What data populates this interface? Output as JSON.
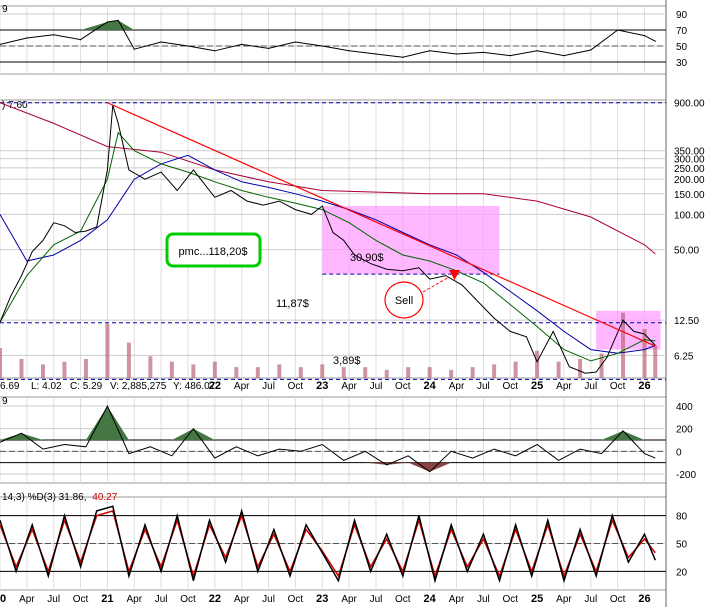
{
  "chart_data": [
    {
      "type": "line",
      "panel": "rsi",
      "header": "9",
      "right_ticks": [
        "90",
        "70",
        "50",
        "30"
      ],
      "tick_values": [
        90,
        70,
        50,
        30
      ],
      "ylim": [
        15,
        100
      ],
      "overbought": 70,
      "oversold": 30,
      "x": [
        2020.0,
        2020.25,
        2020.5,
        2020.75,
        2021.0,
        2021.1,
        2021.25,
        2021.5,
        2021.75,
        2022.0,
        2022.25,
        2022.5,
        2022.75,
        2023.0,
        2023.25,
        2023.5,
        2023.75,
        2024.0,
        2024.25,
        2024.5,
        2024.75,
        2025.0,
        2025.25,
        2025.5,
        2025.75,
        2026.0,
        2026.1
      ],
      "values": [
        52,
        60,
        64,
        58,
        80,
        82,
        46,
        55,
        50,
        44,
        52,
        47,
        55,
        50,
        44,
        40,
        36,
        44,
        40,
        42,
        38,
        44,
        38,
        45,
        70,
        63,
        56
      ]
    },
    {
      "type": "line",
      "panel": "price",
      "header": ") 7.60",
      "log_scale": true,
      "right_ticks": [
        "900.00",
        "350.00",
        "300.00",
        "250.00",
        "200.00",
        "150.00",
        "100.00",
        "50.00",
        "12.50",
        "6.25"
      ],
      "tick_values": [
        900,
        350,
        300,
        250,
        200,
        150,
        100,
        50,
        12.5,
        6.25
      ],
      "ylim": [
        4,
        950
      ],
      "series": [
        {
          "x": [
            2020.0,
            2020.1,
            2020.2,
            2020.3,
            2020.4,
            2020.5,
            2020.6,
            2020.7,
            2020.8,
            2020.9,
            2021.0,
            2021.05,
            2021.1,
            2021.2,
            2021.35,
            2021.5,
            2021.65,
            2021.8,
            2022.0,
            2022.15,
            2022.3,
            2022.45,
            2022.6,
            2022.75,
            2022.9,
            2023.0,
            2023.1,
            2023.2,
            2023.3,
            2023.45,
            2023.6,
            2023.75,
            2023.9,
            2024.0,
            2024.15,
            2024.3,
            2024.45,
            2024.6,
            2024.75,
            2024.9,
            2025.0,
            2025.15,
            2025.3,
            2025.45,
            2025.55,
            2025.65,
            2025.8,
            2025.9,
            2026.0,
            2026.1
          ],
          "values": [
            12,
            20,
            30,
            48,
            60,
            85,
            80,
            70,
            72,
            78,
            240,
            860,
            600,
            240,
            200,
            230,
            160,
            240,
            140,
            160,
            130,
            120,
            130,
            110,
            100,
            118,
            70,
            60,
            45,
            38,
            34,
            33,
            35,
            28,
            30,
            25,
            18,
            13,
            10,
            9,
            5.5,
            10,
            5.0,
            4.4,
            4.5,
            6.0,
            12.5,
            10,
            9.5,
            7.6
          ]
        },
        {
          "x": [
            2020.0,
            2020.25,
            2020.5,
            2020.75,
            2021.0,
            2021.1,
            2021.25,
            2021.5,
            2021.75,
            2022.0,
            2022.25,
            2022.5,
            2022.75,
            2023.0,
            2023.25,
            2023.5,
            2023.75,
            2024.0,
            2024.25,
            2024.5,
            2024.75,
            2025.0,
            2025.25,
            2025.5,
            2025.75,
            2026.0,
            2026.1
          ],
          "values": [
            12,
            30,
            55,
            72,
            200,
            500,
            350,
            270,
            230,
            190,
            160,
            140,
            125,
            110,
            85,
            60,
            45,
            40,
            33,
            26,
            17,
            11,
            7,
            5.6,
            6.5,
            8.5,
            8.3
          ]
        },
        {
          "x": [
            2020.0,
            2020.25,
            2020.5,
            2020.75,
            2021.0,
            2021.25,
            2021.5,
            2021.75,
            2022.0,
            2022.25,
            2022.5,
            2022.75,
            2023.0,
            2023.25,
            2023.5,
            2023.75,
            2024.0,
            2024.25,
            2024.5,
            2024.75,
            2025.0,
            2025.25,
            2025.5,
            2025.75,
            2026.0,
            2026.1
          ],
          "values": [
            100,
            40,
            45,
            60,
            90,
            200,
            270,
            320,
            240,
            190,
            170,
            150,
            130,
            110,
            90,
            70,
            55,
            45,
            32,
            22,
            15,
            10,
            7,
            6.5,
            7,
            7.6
          ]
        },
        {
          "x": [
            2020.0,
            2020.5,
            2021.0,
            2021.5,
            2022.0,
            2022.5,
            2023.0,
            2023.5,
            2024.0,
            2024.5,
            2025.0,
            2025.5,
            2026.0,
            2026.1
          ],
          "values": [
            900,
            600,
            380,
            340,
            240,
            190,
            160,
            155,
            150,
            150,
            130,
            95,
            55,
            46
          ]
        }
      ],
      "trendline": {
        "x": [
          2021.0,
          2026.1
        ],
        "values": [
          900,
          7.5
        ]
      },
      "hlines": [
        {
          "value": 900,
          "color": "#0000aa"
        },
        {
          "value": 11.87,
          "color": "#0000aa"
        },
        {
          "value": 3.89,
          "color": "#0000aa"
        },
        {
          "value": 30.9,
          "color": "#0000aa"
        }
      ],
      "shaded_zones": [
        {
          "x": [
            2023.0,
            2024.65
          ],
          "values": [
            30.9,
            118.2
          ],
          "color": "#ff99ff"
        },
        {
          "x": [
            2025.55,
            2026.15
          ],
          "values": [
            7.0,
            15.0
          ],
          "color": "#ff99ff"
        }
      ],
      "annotations": {
        "pmc": "pmc...118,20$",
        "upper": "30,90$",
        "sell": "Sell",
        "mid_line": "11,87$",
        "low_line": "3,89$"
      },
      "volume": {
        "x": [
          2020.0,
          2020.2,
          2020.4,
          2020.6,
          2020.8,
          2021.0,
          2021.2,
          2021.4,
          2021.6,
          2021.8,
          2022.0,
          2022.2,
          2022.4,
          2022.6,
          2022.8,
          2023.0,
          2023.2,
          2023.4,
          2023.6,
          2023.8,
          2024.0,
          2024.2,
          2024.4,
          2024.6,
          2024.8,
          2025.0,
          2025.2,
          2025.4,
          2025.6,
          2025.8,
          2026.0,
          2026.1
        ],
        "values": [
          0.55,
          0.35,
          0.25,
          0.3,
          0.35,
          1.0,
          0.65,
          0.4,
          0.3,
          0.25,
          0.3,
          0.2,
          0.2,
          0.25,
          0.2,
          0.25,
          0.2,
          0.2,
          0.15,
          0.2,
          0.2,
          0.15,
          0.2,
          0.25,
          0.3,
          0.5,
          0.3,
          0.35,
          0.45,
          1.2,
          0.9,
          0.6
        ]
      }
    },
    {
      "type": "line",
      "panel": "cci",
      "header": "9",
      "right_ticks": [
        "400",
        "200",
        "0",
        "-200"
      ],
      "tick_values": [
        400,
        200,
        0,
        -200
      ],
      "ylim": [
        -280,
        480
      ],
      "x": [
        2020.0,
        2020.2,
        2020.4,
        2020.6,
        2020.8,
        2021.0,
        2021.2,
        2021.4,
        2021.6,
        2021.8,
        2022.0,
        2022.2,
        2022.4,
        2022.6,
        2022.8,
        2023.0,
        2023.2,
        2023.4,
        2023.6,
        2023.8,
        2024.0,
        2024.2,
        2024.4,
        2024.6,
        2024.8,
        2025.0,
        2025.2,
        2025.4,
        2025.6,
        2025.8,
        2026.0,
        2026.1
      ],
      "values": [
        80,
        160,
        20,
        60,
        40,
        400,
        -20,
        40,
        -40,
        200,
        -60,
        40,
        -40,
        20,
        0,
        60,
        -80,
        0,
        -120,
        -40,
        -180,
        0,
        -60,
        20,
        -40,
        60,
        -80,
        20,
        -20,
        180,
        -20,
        -60
      ]
    },
    {
      "type": "line",
      "panel": "stoch",
      "header": "14,3) %D(3) 31.86,",
      "header_value2": "40.27",
      "right_ticks": [
        "80",
        "50",
        "20"
      ],
      "tick_values": [
        80,
        50,
        20
      ],
      "ylim": [
        0,
        100
      ],
      "series": [
        {
          "x": [
            2020.0,
            2020.15,
            2020.3,
            2020.45,
            2020.6,
            2020.75,
            2020.9,
            2021.05,
            2021.2,
            2021.35,
            2021.5,
            2021.65,
            2021.8,
            2021.95,
            2022.1,
            2022.25,
            2022.4,
            2022.55,
            2022.7,
            2022.85,
            2023.0,
            2023.15,
            2023.3,
            2023.45,
            2023.6,
            2023.75,
            2023.9,
            2024.05,
            2024.2,
            2024.35,
            2024.5,
            2024.65,
            2024.8,
            2024.95,
            2025.1,
            2025.25,
            2025.4,
            2025.55,
            2025.7,
            2025.85,
            2026.0,
            2026.1
          ],
          "values": [
            75,
            20,
            70,
            15,
            80,
            25,
            85,
            90,
            15,
            70,
            20,
            80,
            10,
            75,
            30,
            85,
            20,
            65,
            15,
            70,
            40,
            10,
            75,
            20,
            60,
            15,
            80,
            10,
            70,
            20,
            60,
            10,
            70,
            15,
            75,
            10,
            65,
            15,
            80,
            30,
            60,
            32
          ]
        },
        {
          "x": [
            2020.0,
            2020.15,
            2020.3,
            2020.45,
            2020.6,
            2020.75,
            2020.9,
            2021.05,
            2021.2,
            2021.35,
            2021.5,
            2021.65,
            2021.8,
            2021.95,
            2022.1,
            2022.25,
            2022.4,
            2022.55,
            2022.7,
            2022.85,
            2023.0,
            2023.15,
            2023.3,
            2023.45,
            2023.6,
            2023.75,
            2023.9,
            2024.05,
            2024.2,
            2024.35,
            2024.5,
            2024.65,
            2024.8,
            2024.95,
            2025.1,
            2025.25,
            2025.4,
            2025.55,
            2025.7,
            2025.85,
            2026.0,
            2026.1
          ],
          "values": [
            70,
            25,
            65,
            20,
            75,
            30,
            80,
            85,
            20,
            65,
            25,
            75,
            15,
            70,
            35,
            80,
            25,
            60,
            20,
            65,
            42,
            15,
            70,
            25,
            55,
            20,
            75,
            15,
            65,
            25,
            55,
            15,
            65,
            20,
            70,
            15,
            60,
            20,
            75,
            35,
            55,
            40
          ]
        }
      ]
    }
  ],
  "ohlc_bar": {
    "open": "6.69",
    "low": "L: 4.02",
    "close": "C: 5.29",
    "volume": "V: 2,885,275",
    "y": "Y: 486.07"
  },
  "x_axis_price": {
    "labels": [
      "22",
      "Apr",
      "Jul",
      "Oct",
      "23",
      "Apr",
      "Jul",
      "Oct",
      "24",
      "Apr",
      "Jul",
      "Oct",
      "25",
      "Apr",
      "Jul",
      "Oct",
      "26"
    ],
    "positions": [
      2022.0,
      2022.25,
      2022.5,
      2022.75,
      2023.0,
      2023.25,
      2023.5,
      2023.75,
      2024.0,
      2024.25,
      2024.5,
      2024.75,
      2025.0,
      2025.25,
      2025.5,
      2025.75,
      2026.0
    ],
    "bold": [
      "22",
      "23",
      "24",
      "25",
      "26"
    ]
  },
  "x_axis_bottom": {
    "labels": [
      "20",
      "Apr",
      "Jul",
      "Oct",
      "21",
      "Apr",
      "Jul",
      "Oct",
      "22",
      "Apr",
      "Jul",
      "Oct",
      "23",
      "Apr",
      "Jul",
      "Oct",
      "24",
      "Apr",
      "Jul",
      "Oct",
      "25",
      "Apr",
      "Jul",
      "Oct",
      "26"
    ],
    "positions": [
      2020.0,
      2020.25,
      2020.5,
      2020.75,
      2021.0,
      2021.25,
      2021.5,
      2021.75,
      2022.0,
      2022.25,
      2022.5,
      2022.75,
      2023.0,
      2023.25,
      2023.5,
      2023.75,
      2024.0,
      2024.25,
      2024.5,
      2024.75,
      2025.0,
      2025.25,
      2025.5,
      2025.75,
      2026.0
    ],
    "bold": [
      "20",
      "21",
      "22",
      "23",
      "24",
      "25",
      "26"
    ]
  },
  "colors": {
    "price": "#000000",
    "ma_short": "#006600",
    "ma_mid": "#0000aa",
    "ma_long": "#aa0033",
    "trend": "#ff0000",
    "shade": "#ff99ff",
    "pmc_border": "#00cc00",
    "sell_circle": "#ff0000",
    "volume": "#bb6677",
    "rsi_fill": "#447744",
    "cci_pos": "#447744",
    "cci_neg": "#884444",
    "stoch_d": "#cc0000"
  }
}
